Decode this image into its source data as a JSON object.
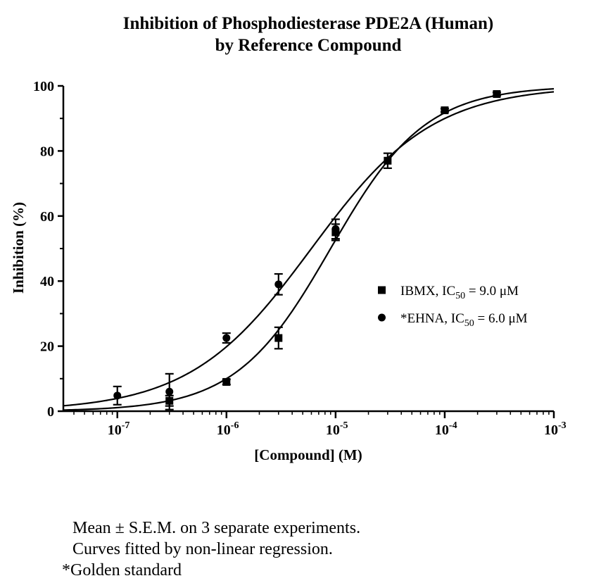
{
  "chart_data": {
    "type": "scatter",
    "title": "Inhibition of Phosphodiesterase PDE2A (Human)",
    "subtitle": "by Reference Compound",
    "xlabel": "[Compound] (M)",
    "ylabel": "Inhibition (%)",
    "xscale": "log",
    "xlim": [
      3.2e-08,
      0.001
    ],
    "ylim": [
      0,
      100
    ],
    "x_ticks": [
      {
        "base": "10",
        "exp": "-7"
      },
      {
        "base": "10",
        "exp": "-6"
      },
      {
        "base": "10",
        "exp": "-5"
      },
      {
        "base": "10",
        "exp": "-4"
      },
      {
        "base": "10",
        "exp": "-3"
      }
    ],
    "y_ticks": [
      "0",
      "20",
      "40",
      "60",
      "80",
      "100"
    ],
    "legend_position": "center-right",
    "series": [
      {
        "name": "IBMX",
        "legend_name": "IBMX, IC",
        "legend_sub": "50",
        "legend_value": " = 9.0 μM",
        "marker": "square",
        "ic50": 9e-06,
        "x": [
          3e-07,
          1e-06,
          3e-06,
          1e-05,
          3e-05,
          0.0001,
          0.0003
        ],
        "y": [
          3.2,
          9.0,
          22.5,
          55.0,
          77.0,
          92.5,
          97.5
        ],
        "err": [
          1.6,
          0.8,
          3.3,
          2.5,
          2.3,
          0.5,
          0.5
        ]
      },
      {
        "name": "*EHNA",
        "legend_name": "*EHNA, IC",
        "legend_sub": "50",
        "legend_value": " = 6.0 μM",
        "marker": "circle",
        "ic50": 6e-06,
        "x": [
          1e-07,
          3e-07,
          1e-06,
          3e-06,
          1e-05
        ],
        "y": [
          4.8,
          6.0,
          22.5,
          39.0,
          56.0
        ],
        "err": [
          2.8,
          5.5,
          1.5,
          3.2,
          3.0
        ]
      }
    ]
  },
  "notes": [
    "Mean ± S.E.M. on 3 separate experiments.",
    "Curves fitted by non-linear regression.",
    "*Golden standard"
  ]
}
